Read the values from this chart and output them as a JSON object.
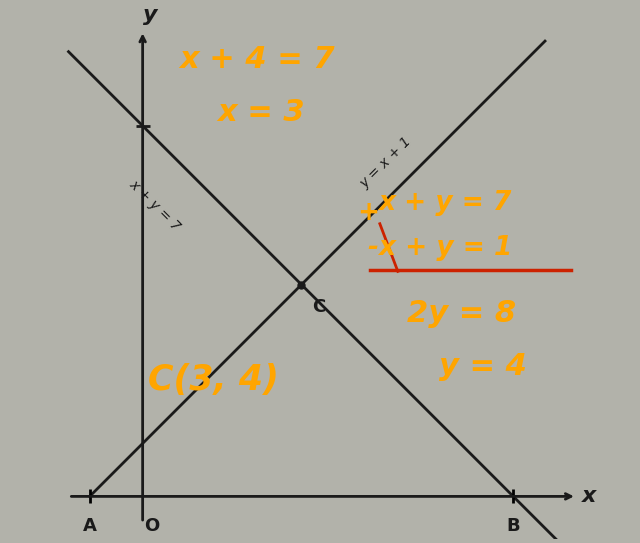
{
  "bg_color": "#b2b2aa",
  "axis_color": "#1a1a1a",
  "line_color": "#1a1a1a",
  "orange_color": "#FFA500",
  "red_color": "#cc2200",
  "figsize": [
    6.4,
    5.43
  ],
  "dpi": 100,
  "point_A": [
    -1,
    0
  ],
  "point_B": [
    7,
    0
  ],
  "point_C": [
    3,
    4
  ],
  "line1_label": "x + y = 7",
  "line2_label": "y = x + 1",
  "top_left_line1": "x + 4 = 7",
  "top_left_line2": "x = 3",
  "right_eq1": "x + y = 7",
  "right_eq2": "-x + y = 1",
  "right_eq3": "2y = 8",
  "right_eq4": "y = 4",
  "plus_sign": "+",
  "point_C_label": "C",
  "point_O_label": "O",
  "point_A_label": "A",
  "point_B_label": "B",
  "coord_label": "C(3, 4)",
  "x_axis_label": "x",
  "y_axis_label": "y"
}
